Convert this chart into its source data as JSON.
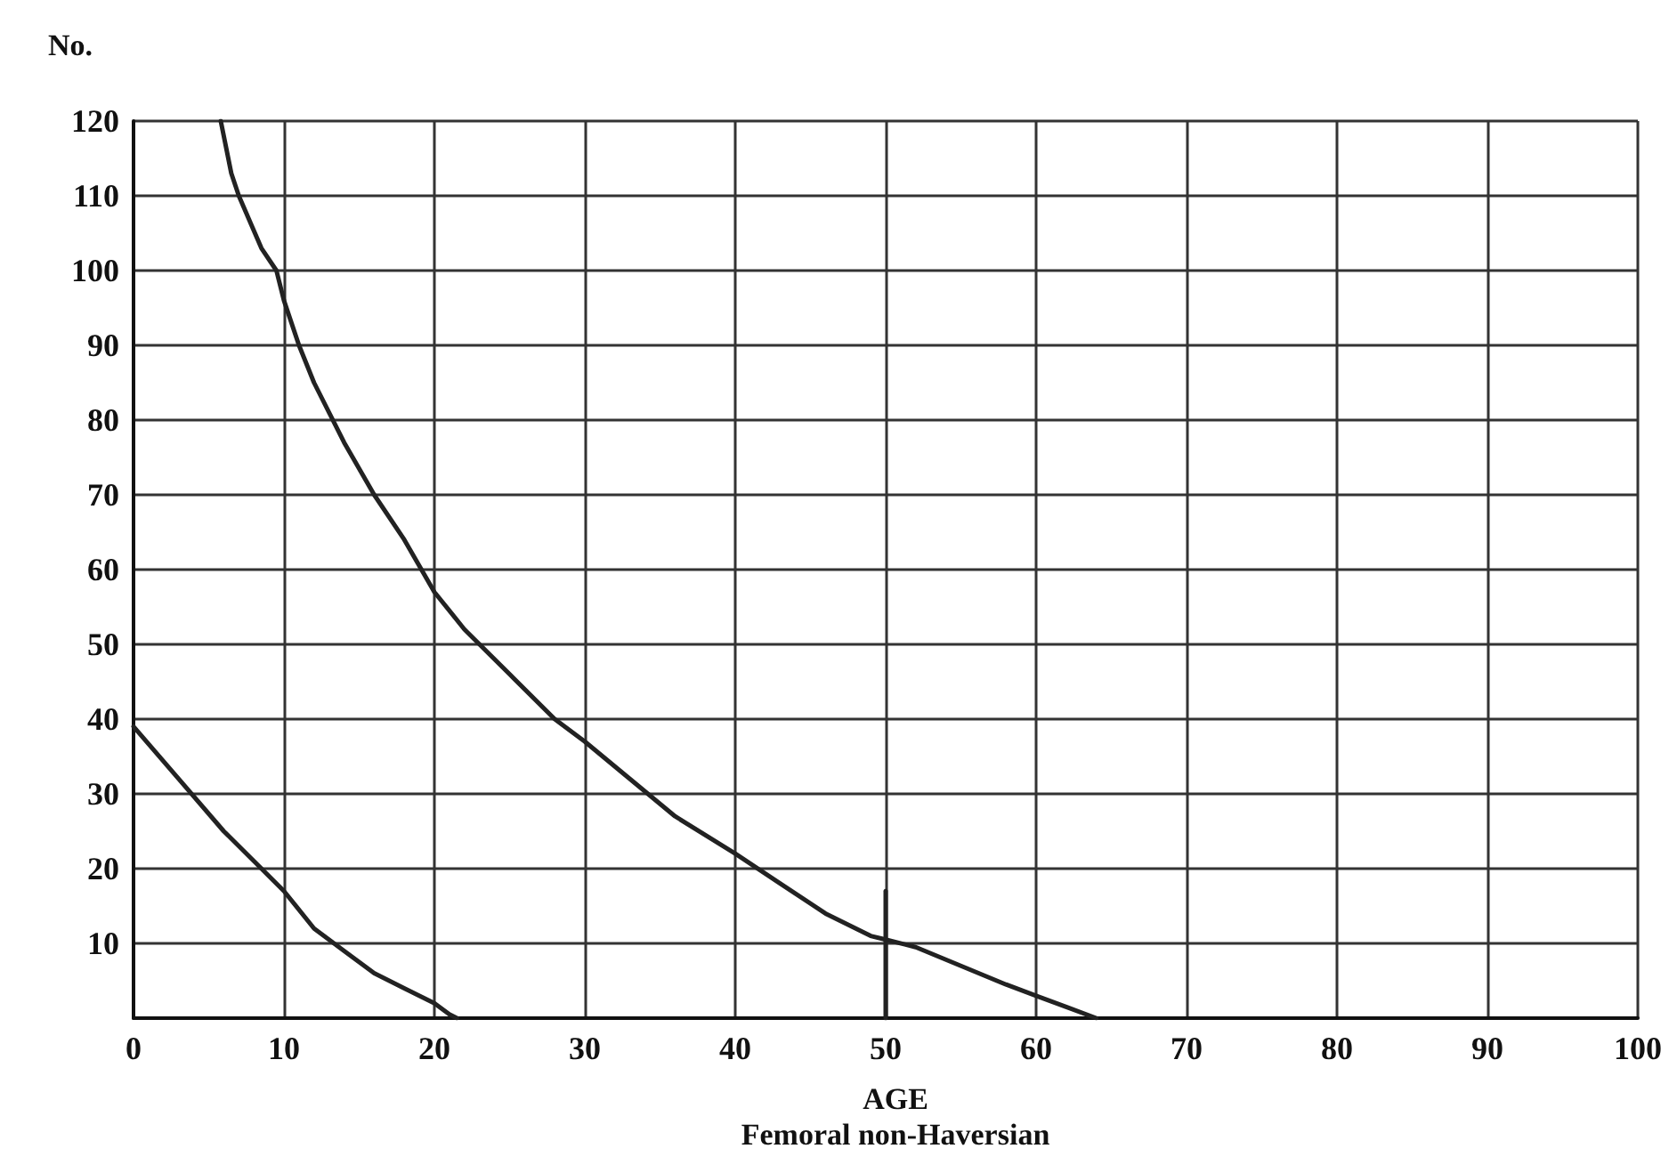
{
  "chart_data": {
    "type": "line",
    "ylabel": "No.",
    "xlabel": "AGE",
    "annotations": [
      "Femoral non-Haversian"
    ],
    "xlim": [
      0,
      100
    ],
    "xticks": [
      0,
      10,
      20,
      30,
      40,
      50,
      60,
      70,
      80,
      90,
      100
    ],
    "ylim": [
      0,
      120
    ],
    "yticks": [
      10,
      20,
      30,
      40,
      50,
      60,
      70,
      80,
      90,
      100,
      110,
      120
    ],
    "grid": true,
    "marker": "none",
    "line_style": "solid",
    "series": [
      {
        "color": "#222222",
        "x": [
          5.8,
          6.5,
          7,
          8.5,
          9.5,
          10,
          11,
          12,
          14,
          16,
          18,
          20,
          22,
          25,
          28,
          30,
          33,
          36,
          40,
          43,
          46,
          49,
          50,
          52,
          55,
          58,
          60,
          62,
          64
        ],
        "values": [
          120,
          113,
          110,
          103,
          100,
          96,
          90,
          85,
          77,
          70,
          64,
          57,
          52,
          46,
          40,
          37,
          32,
          27,
          22,
          18,
          14,
          11,
          10.5,
          9.5,
          7,
          4.5,
          3,
          1.5,
          0
        ]
      },
      {
        "color": "#222222",
        "x": [
          50,
          50
        ],
        "values": [
          0,
          17
        ]
      },
      {
        "color": "#222222",
        "x": [
          0,
          3,
          6,
          8,
          10,
          12,
          14,
          16,
          18,
          20,
          21,
          21.5
        ],
        "values": [
          39,
          32,
          25,
          21,
          17,
          12,
          9,
          6,
          4,
          2,
          0.5,
          0
        ]
      }
    ]
  }
}
